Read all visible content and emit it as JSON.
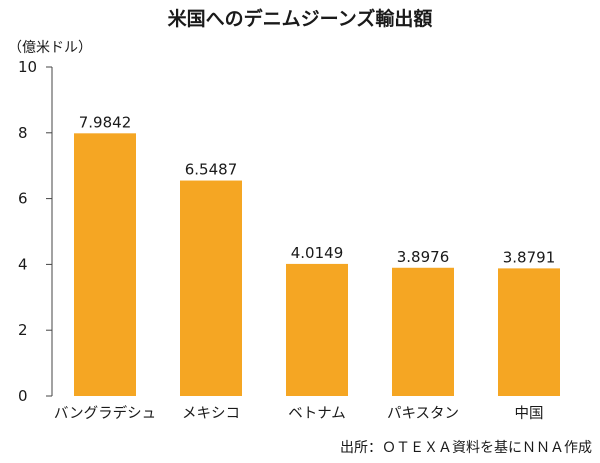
{
  "chart_data": {
    "type": "bar",
    "title": "米国へのデニムジーンズ輸出額",
    "ylabel": "（億米ドル）",
    "xlabel": "",
    "categories": [
      "バングラデシュ",
      "メキシコ",
      "ベトナム",
      "パキスタン",
      "中国"
    ],
    "values": [
      7.9842,
      6.5487,
      4.0149,
      3.8976,
      3.8791
    ],
    "value_labels": [
      "7.9842",
      "6.5487",
      "4.0149",
      "3.8976",
      "3.8791"
    ],
    "ylim": [
      0,
      10
    ],
    "yticks": [
      0,
      2,
      4,
      6,
      8,
      10
    ],
    "grid": false,
    "legend": "none",
    "bar_color": "#F5A623",
    "source": "出所：ＯＴＥＸＡ資料を基にＮＮＡ作成"
  }
}
